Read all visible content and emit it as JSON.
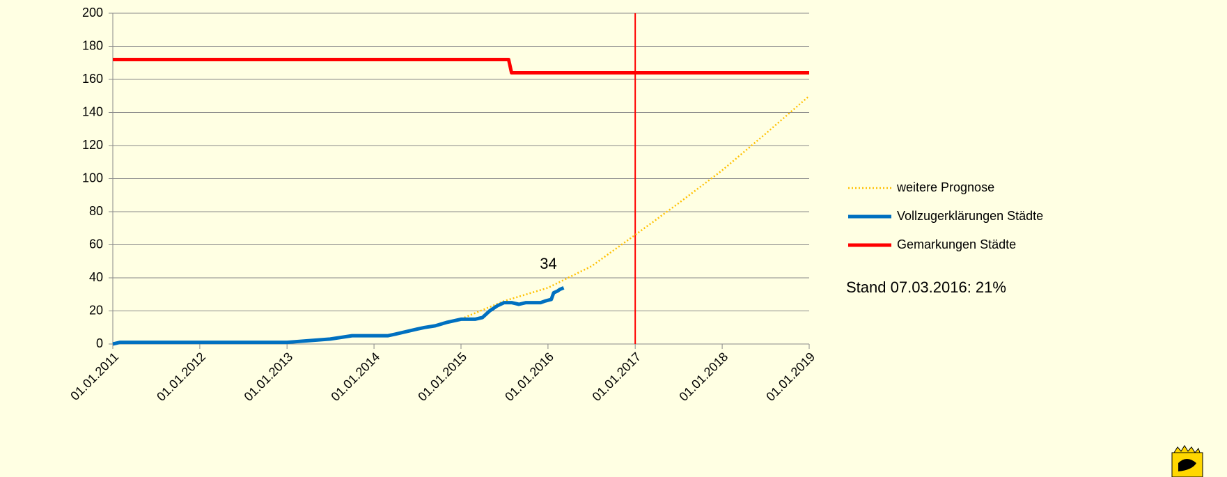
{
  "chart_data": {
    "type": "line",
    "series": [
      {
        "name": "weitere Prognose",
        "color": "#ffc000",
        "style": "dotted",
        "x": [
          "2015-01-15",
          "2015-07-01",
          "2016-01-01",
          "2016-07-01",
          "2017-01-01",
          "2017-07-01",
          "2018-01-01",
          "2018-07-01",
          "2019-01-01"
        ],
        "values": [
          16,
          26,
          34,
          47,
          66,
          85,
          105,
          127,
          150
        ]
      },
      {
        "name": "Vollzugerklärungen Städte",
        "color": "#0070c0",
        "style": "solid",
        "x": [
          "2011-01-01",
          "2011-02-01",
          "2013-01-01",
          "2013-07-01",
          "2013-10-01",
          "2014-03-01",
          "2014-04-01",
          "2014-07-01",
          "2014-08-01",
          "2014-09-15",
          "2014-11-01",
          "2015-01-01",
          "2015-03-01",
          "2015-04-01",
          "2015-05-01",
          "2015-06-01",
          "2015-07-01",
          "2015-08-01",
          "2015-09-01",
          "2015-10-01",
          "2015-12-01",
          "2015-12-20",
          "2016-01-15",
          "2016-01-25",
          "2016-02-10",
          "2016-02-20",
          "2016-03-07"
        ],
        "values": [
          0,
          1,
          1,
          3,
          5,
          5,
          6,
          9,
          10,
          11,
          13,
          15,
          15,
          16,
          20,
          23,
          25,
          25,
          24,
          25,
          25,
          26,
          27,
          31,
          32,
          33,
          34
        ]
      },
      {
        "name": "Gemarkungen Städte",
        "color": "#ff0000",
        "style": "solid",
        "x": [
          "2011-01-01",
          "2015-07-20",
          "2015-08-01",
          "2019-01-01"
        ],
        "values": [
          172,
          172,
          164,
          164
        ]
      }
    ],
    "xlim": [
      "2011-01-01",
      "2019-01-01"
    ],
    "xticks": [
      {
        "value": "2011-01-01",
        "label": "01.01.2011"
      },
      {
        "value": "2012-01-01",
        "label": "01.01.2012"
      },
      {
        "value": "2013-01-01",
        "label": "01.01.2013"
      },
      {
        "value": "2014-01-01",
        "label": "01.01.2014"
      },
      {
        "value": "2015-01-01",
        "label": "01.01.2015"
      },
      {
        "value": "2016-01-01",
        "label": "01.01.2016"
      },
      {
        "value": "2017-01-01",
        "label": "01.01.2017"
      },
      {
        "value": "2018-01-01",
        "label": "01.01.2018"
      },
      {
        "value": "2019-01-01",
        "label": "01.01.2019"
      }
    ],
    "ylim": [
      0,
      200
    ],
    "yticks": [
      0,
      20,
      40,
      60,
      80,
      100,
      120,
      140,
      160,
      180,
      200
    ],
    "grid": true,
    "vline": {
      "x": "2017-01-01",
      "color": "#ff0000"
    },
    "annotation": "Stand 07.03.2016: 21%",
    "legend": "right"
  }
}
